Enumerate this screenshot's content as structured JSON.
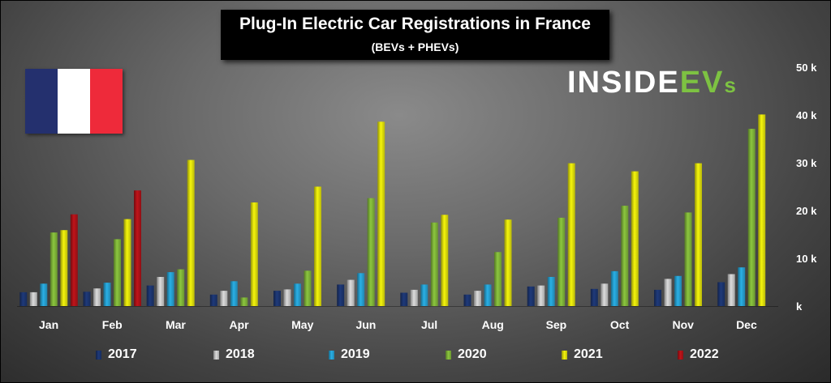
{
  "title": "Plug-In Electric Car Registrations in France",
  "subtitle": "(BEVs + PHEVs)",
  "logo": {
    "part1": "INSIDE",
    "part2": "EV",
    "part3": "s"
  },
  "flag_colors": [
    "#24306e",
    "#ffffff",
    "#ee2a3a"
  ],
  "chart_data": {
    "type": "bar",
    "categories": [
      "Jan",
      "Feb",
      "Mar",
      "Apr",
      "May",
      "Jun",
      "Jul",
      "Aug",
      "Sep",
      "Oct",
      "Nov",
      "Dec"
    ],
    "ylim": [
      0,
      50000
    ],
    "y_ticks": [
      {
        "value": 0,
        "label": "k"
      },
      {
        "value": 10000,
        "label": "10 k"
      },
      {
        "value": 20000,
        "label": "20 k"
      },
      {
        "value": 30000,
        "label": "30 k"
      },
      {
        "value": 40000,
        "label": "40 k"
      },
      {
        "value": 50000,
        "label": "50 k"
      }
    ],
    "legend_position": "bottom",
    "grid": false,
    "series": [
      {
        "name": "2017",
        "color": "#1f3a7a",
        "values": [
          2900,
          3000,
          4300,
          2400,
          3200,
          4500,
          2800,
          2400,
          4100,
          3600,
          3400,
          5000
        ]
      },
      {
        "name": "2018",
        "color": "#dcdcdc",
        "values": [
          2900,
          3700,
          6100,
          3200,
          3500,
          5500,
          3400,
          3200,
          4300,
          4700,
          5700,
          6700
        ]
      },
      {
        "name": "2019",
        "color": "#2ab0e6",
        "values": [
          4700,
          4900,
          7100,
          5200,
          4700,
          6900,
          4500,
          4500,
          6100,
          7300,
          6300,
          8100
        ]
      },
      {
        "name": "2020",
        "color": "#8cc63f",
        "values": [
          15400,
          14000,
          7700,
          1800,
          7400,
          22600,
          17500,
          11300,
          18500,
          21000,
          19600,
          37100
        ]
      },
      {
        "name": "2021",
        "color": "#f5f50c",
        "values": [
          15900,
          18200,
          30600,
          21700,
          25000,
          38600,
          19100,
          18100,
          29900,
          28200,
          29900,
          40100
        ]
      },
      {
        "name": "2022",
        "color": "#c0141a",
        "values": [
          19200,
          24200,
          null,
          null,
          null,
          null,
          null,
          null,
          null,
          null,
          null,
          null
        ]
      }
    ]
  }
}
